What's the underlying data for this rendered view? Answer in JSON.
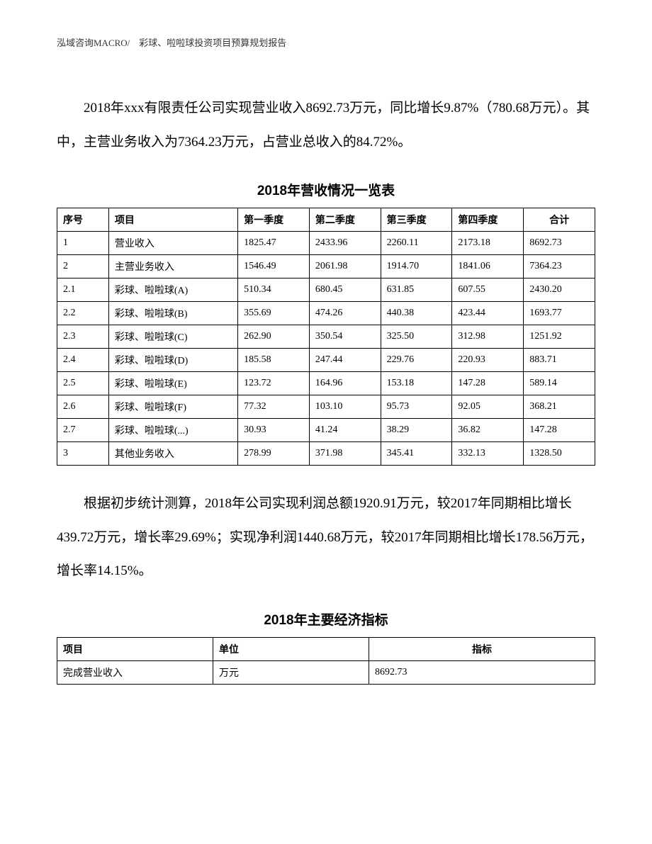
{
  "header": {
    "text": "泓域咨询MACRO/　彩球、啦啦球投资项目预算规划报告"
  },
  "para1": "2018年xxx有限责任公司实现营业收入8692.73万元，同比增长9.87%（780.68万元）。其中，主营业务收入为7364.23万元，占营业总收入的84.72%。",
  "table1": {
    "title": "2018年营收情况一览表",
    "headers": {
      "seq": "序号",
      "item": "项目",
      "q1": "第一季度",
      "q2": "第二季度",
      "q3": "第三季度",
      "q4": "第四季度",
      "total": "合计"
    },
    "rows": [
      {
        "seq": "1",
        "item": "营业收入",
        "q1": "1825.47",
        "q2": "2433.96",
        "q3": "2260.11",
        "q4": "2173.18",
        "total": "8692.73"
      },
      {
        "seq": "2",
        "item": "主营业务收入",
        "q1": "1546.49",
        "q2": "2061.98",
        "q3": "1914.70",
        "q4": "1841.06",
        "total": "7364.23"
      },
      {
        "seq": "2.1",
        "item": "彩球、啦啦球(A)",
        "q1": "510.34",
        "q2": "680.45",
        "q3": "631.85",
        "q4": "607.55",
        "total": "2430.20"
      },
      {
        "seq": "2.2",
        "item": "彩球、啦啦球(B)",
        "q1": "355.69",
        "q2": "474.26",
        "q3": "440.38",
        "q4": "423.44",
        "total": "1693.77"
      },
      {
        "seq": "2.3",
        "item": "彩球、啦啦球(C)",
        "q1": "262.90",
        "q2": "350.54",
        "q3": "325.50",
        "q4": "312.98",
        "total": "1251.92"
      },
      {
        "seq": "2.4",
        "item": "彩球、啦啦球(D)",
        "q1": "185.58",
        "q2": "247.44",
        "q3": "229.76",
        "q4": "220.93",
        "total": "883.71"
      },
      {
        "seq": "2.5",
        "item": "彩球、啦啦球(E)",
        "q1": "123.72",
        "q2": "164.96",
        "q3": "153.18",
        "q4": "147.28",
        "total": "589.14"
      },
      {
        "seq": "2.6",
        "item": "彩球、啦啦球(F)",
        "q1": "77.32",
        "q2": "103.10",
        "q3": "95.73",
        "q4": "92.05",
        "total": "368.21"
      },
      {
        "seq": "2.7",
        "item": "彩球、啦啦球(...)",
        "q1": "30.93",
        "q2": "41.24",
        "q3": "38.29",
        "q4": "36.82",
        "total": "147.28"
      },
      {
        "seq": "3",
        "item": "其他业务收入",
        "q1": "278.99",
        "q2": "371.98",
        "q3": "345.41",
        "q4": "332.13",
        "total": "1328.50"
      }
    ]
  },
  "para2": "根据初步统计测算，2018年公司实现利润总额1920.91万元，较2017年同期相比增长439.72万元，增长率29.69%；实现净利润1440.68万元，较2017年同期相比增长178.56万元，增长率14.15%。",
  "table2": {
    "title": "2018年主要经济指标",
    "headers": {
      "item": "项目",
      "unit": "单位",
      "indicator": "指标"
    },
    "rows": [
      {
        "item": "完成营业收入",
        "unit": "万元",
        "indicator": "8692.73"
      }
    ]
  },
  "colors": {
    "text": "#000000",
    "bg": "#ffffff",
    "border": "#000000",
    "header_text": "#333333"
  },
  "typography": {
    "body_fontsize": 19,
    "table_fontsize": 14,
    "header_fontsize": 13,
    "line_height": 2.5
  }
}
